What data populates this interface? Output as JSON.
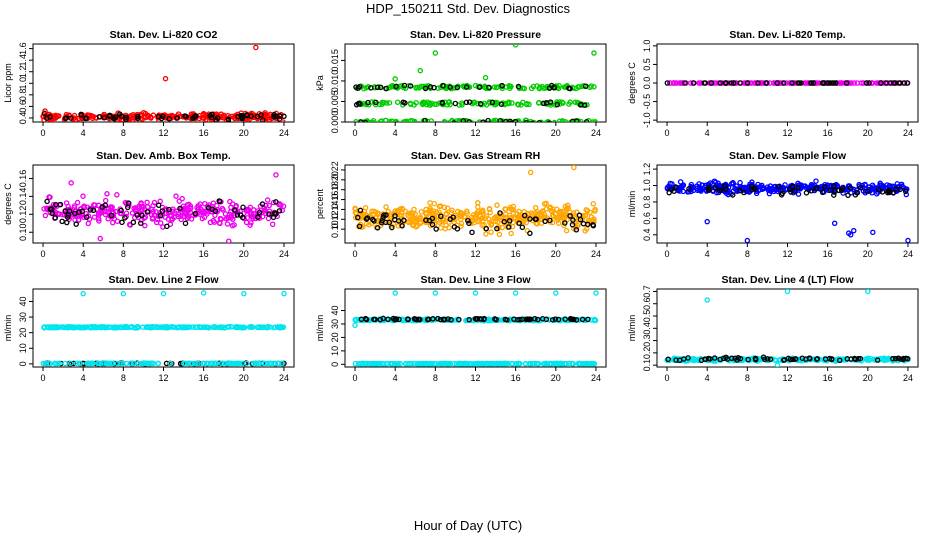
{
  "title": "HDP_150211  Std. Dev. Diagnostics",
  "xlabel": "Hour of Day (UTC)",
  "chart_data": [
    {
      "type": "scatter",
      "title": "Stan. Dev. Li-820 CO2",
      "ylabel": "Licor ppm",
      "xlim": [
        -1,
        25
      ],
      "ylim": [
        0.33,
        1.68
      ],
      "yticks": [
        0.4,
        0.6,
        0.8,
        1.0,
        1.2,
        1.4,
        1.6
      ],
      "xticks": [
        0,
        4,
        8,
        12,
        16,
        20,
        24
      ],
      "series": [
        {
          "name": "main",
          "color": "#ff0000",
          "center": 0.42,
          "spread": 0.05,
          "n": 260
        },
        {
          "name": "hourly",
          "color": "#000000",
          "center": 0.42,
          "spread": 0.05,
          "n": 60
        }
      ],
      "outliers": [
        {
          "x": 12.2,
          "y": 1.08
        },
        {
          "x": 21.2,
          "y": 1.62
        },
        {
          "x": 0.2,
          "y": 0.52
        },
        {
          "x": 23.9,
          "y": 0.33
        }
      ]
    },
    {
      "type": "scatter",
      "title": "Stan. Dev. Li-820 Pressure",
      "ylabel": "kPa",
      "xlim": [
        -1,
        25
      ],
      "ylim": [
        0,
        0.019
      ],
      "yticks": [
        0.0,
        0.005,
        0.01,
        0.015
      ],
      "xticks": [
        0,
        4,
        8,
        12,
        16,
        20,
        24
      ],
      "series": [
        {
          "name": "main",
          "color": "#00cc00",
          "levels": [
            0.0,
            0.0045,
            0.0085
          ],
          "n": 330
        },
        {
          "name": "hourly",
          "color": "#000000",
          "levels": [
            0.0,
            0.0045,
            0.0085
          ],
          "n": 70
        }
      ],
      "outliers": [
        {
          "x": 6.5,
          "y": 0.0125
        },
        {
          "x": 8.0,
          "y": 0.0168
        },
        {
          "x": 16.0,
          "y": 0.0188
        },
        {
          "x": 23.8,
          "y": 0.0168
        },
        {
          "x": 4.0,
          "y": 0.0105
        },
        {
          "x": 13.0,
          "y": 0.0108
        }
      ]
    },
    {
      "type": "scatter",
      "title": "Stan. Dev. Li-820 Temp.",
      "ylabel": "degrees C",
      "xlim": [
        -1,
        25
      ],
      "ylim": [
        -1.05,
        1.05
      ],
      "yticks": [
        -1.0,
        -0.5,
        0.0,
        0.5,
        1.0
      ],
      "xticks": [
        0,
        4,
        8,
        12,
        16,
        20,
        24
      ],
      "series": [
        {
          "name": "main",
          "color": "#ee00ee",
          "center": 0.0,
          "spread": 0,
          "n": 160
        },
        {
          "name": "hourly",
          "color": "#000000",
          "center": 0.0,
          "spread": 0,
          "n": 48
        }
      ],
      "outliers": []
    },
    {
      "type": "scatter",
      "title": "Stan. Dev. Amb. Box Temp.",
      "ylabel": "degrees C",
      "xlim": [
        -1,
        25
      ],
      "ylim": [
        0.088,
        0.175
      ],
      "yticks": [
        0.1,
        0.12,
        0.14,
        0.16
      ],
      "xticks": [
        0,
        4,
        8,
        12,
        16,
        20,
        24
      ],
      "series": [
        {
          "name": "main",
          "color": "#ee00ee",
          "center": 0.122,
          "spread": 0.013,
          "n": 330
        },
        {
          "name": "hourly",
          "color": "#000000",
          "center": 0.122,
          "spread": 0.012,
          "n": 60
        }
      ],
      "outliers": [
        {
          "x": 2.8,
          "y": 0.155
        },
        {
          "x": 23.2,
          "y": 0.164
        },
        {
          "x": 5.7,
          "y": 0.093
        },
        {
          "x": 18.5,
          "y": 0.09
        }
      ]
    },
    {
      "type": "scatter",
      "title": "Stan. Dev. Gas Stream RH",
      "ylabel": "percent",
      "xlim": [
        -1,
        25
      ],
      "ylim": [
        0.072,
        0.23
      ],
      "yticks": [
        0.1,
        0.12,
        0.14,
        0.16,
        0.18,
        0.2,
        0.22
      ],
      "xticks": [
        0,
        4,
        8,
        12,
        16,
        20,
        24
      ],
      "series": [
        {
          "name": "main",
          "color": "#ffa500",
          "center": 0.125,
          "spread": 0.025,
          "n": 380
        },
        {
          "name": "hourly",
          "color": "#000000",
          "center": 0.115,
          "spread": 0.02,
          "n": 60
        }
      ],
      "outliers": [
        {
          "x": 21.8,
          "y": 0.225
        },
        {
          "x": 17.5,
          "y": 0.215
        }
      ]
    },
    {
      "type": "scatter",
      "title": "Stan. Dev. Sample Flow",
      "ylabel": "ml/min",
      "xlim": [
        -1,
        25
      ],
      "ylim": [
        0.3,
        1.25
      ],
      "yticks": [
        0.4,
        0.6,
        0.8,
        1.0,
        1.2
      ],
      "xticks": [
        0,
        4,
        8,
        12,
        16,
        20,
        24
      ],
      "series": [
        {
          "name": "main",
          "color": "#0000ff",
          "center": 0.97,
          "spread": 0.06,
          "n": 330
        },
        {
          "name": "hourly",
          "color": "#000000",
          "center": 0.94,
          "spread": 0.06,
          "n": 60
        }
      ],
      "outliers": [
        {
          "x": 8.0,
          "y": 0.33
        },
        {
          "x": 24.0,
          "y": 0.33
        },
        {
          "x": 18.1,
          "y": 0.42
        },
        {
          "x": 18.3,
          "y": 0.4
        },
        {
          "x": 18.6,
          "y": 0.45
        },
        {
          "x": 4.0,
          "y": 0.56
        },
        {
          "x": 16.7,
          "y": 0.54
        },
        {
          "x": 20.5,
          "y": 0.43
        }
      ]
    },
    {
      "type": "scatter",
      "title": "Stan. Dev. Line 2 Flow",
      "ylabel": "ml/min",
      "xlim": [
        -1,
        25
      ],
      "ylim": [
        -2,
        48
      ],
      "yticks": [
        0,
        10,
        20,
        30,
        40
      ],
      "xticks": [
        0,
        4,
        8,
        12,
        16,
        20,
        24
      ],
      "series": [
        {
          "name": "line",
          "color": "#00e5ee",
          "center": 23.5,
          "spread": 0.4,
          "n": 240
        },
        {
          "name": "hourly",
          "color": "#000000",
          "center": 0.3,
          "spread": 0.2,
          "n": 60
        },
        {
          "name": "baseline",
          "color": "#00e5ee",
          "center": 0.3,
          "spread": 0.1,
          "n": 120
        }
      ],
      "outliers": [
        {
          "x": 4.0,
          "y": 45
        },
        {
          "x": 8.0,
          "y": 45
        },
        {
          "x": 12.0,
          "y": 45
        },
        {
          "x": 16.0,
          "y": 45.5
        },
        {
          "x": 20.0,
          "y": 45
        },
        {
          "x": 24.0,
          "y": 45
        }
      ]
    },
    {
      "type": "scatter",
      "title": "Stan. Dev. Line 3 Flow",
      "ylabel": "ml/min",
      "xlim": [
        -1,
        25
      ],
      "ylim": [
        -2,
        56
      ],
      "yticks": [
        0,
        10,
        20,
        30,
        40
      ],
      "xticks": [
        0,
        4,
        8,
        12,
        16,
        20,
        24
      ],
      "series": [
        {
          "name": "line",
          "color": "#00e5ee",
          "center": 33,
          "spread": 0.6,
          "n": 220
        },
        {
          "name": "hourly",
          "color": "#000000",
          "center": 33.5,
          "spread": 0.5,
          "n": 70
        },
        {
          "name": "baseline",
          "color": "#00e5ee",
          "center": 0.5,
          "spread": 0.2,
          "n": 200
        }
      ],
      "outliers": [
        {
          "x": 4.0,
          "y": 53
        },
        {
          "x": 8.0,
          "y": 53
        },
        {
          "x": 12.0,
          "y": 53
        },
        {
          "x": 16.0,
          "y": 53
        },
        {
          "x": 20.0,
          "y": 53
        },
        {
          "x": 24.0,
          "y": 53
        },
        {
          "x": 0.0,
          "y": 29
        }
      ]
    },
    {
      "type": "scatter",
      "title": "Stan. Dev. Line 4 (LT) Flow",
      "ylabel": "ml/min",
      "xlim": [
        -1,
        25
      ],
      "ylim": [
        0.085,
        0.72
      ],
      "yticks": [
        0.1,
        0.2,
        0.3,
        0.4,
        0.5,
        0.6,
        0.7
      ],
      "xticks": [
        0,
        4,
        8,
        12,
        16,
        20,
        24
      ],
      "series": [
        {
          "name": "main",
          "color": "#00e5ee",
          "center": 0.145,
          "spread": 0.01,
          "n": 240
        },
        {
          "name": "hourly",
          "color": "#000000",
          "center": 0.15,
          "spread": 0.012,
          "n": 60
        }
      ],
      "outliers": [
        {
          "x": 4.0,
          "y": 0.63
        },
        {
          "x": 12.0,
          "y": 0.7
        },
        {
          "x": 20.0,
          "y": 0.7
        },
        {
          "x": 11.0,
          "y": 0.1
        }
      ]
    }
  ]
}
